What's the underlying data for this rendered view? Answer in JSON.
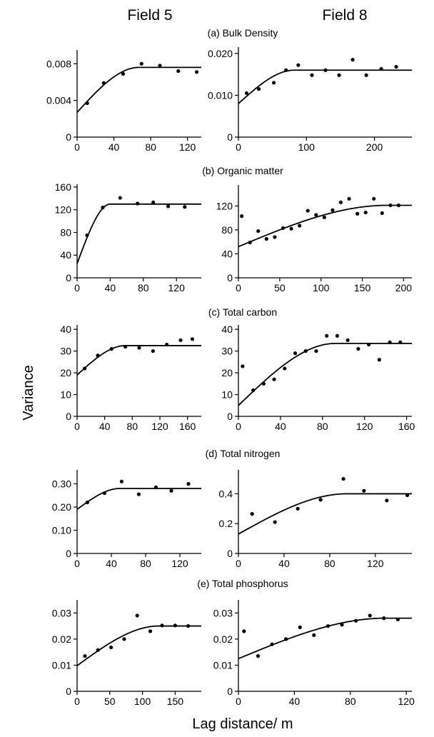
{
  "figure": {
    "columns": [
      "Field 5",
      "Field 8"
    ],
    "ylabel": "Variance",
    "xlabel": "Lag distance/ m"
  },
  "chart_data": [
    {
      "type": "scatter",
      "row": "(a) Bulk Density",
      "column": "Field 5",
      "xlim": [
        0,
        135
      ],
      "ylim": [
        0,
        0.0095
      ],
      "xticks": [
        0,
        40,
        80,
        120
      ],
      "xtick_labels": [
        "0",
        "40",
        "80",
        "120"
      ],
      "yticks": [
        0,
        0.004,
        0.008
      ],
      "ytick_labels": [
        "0",
        "0.004",
        "0.008"
      ],
      "points": [
        [
          11,
          0.0037
        ],
        [
          29,
          0.0059
        ],
        [
          50,
          0.0069
        ],
        [
          70,
          0.008
        ],
        [
          90,
          0.0078
        ],
        [
          110,
          0.0072
        ],
        [
          130,
          0.0071
        ]
      ],
      "model": {
        "type": "spherical",
        "nugget": 0.0027,
        "sill": 0.0076,
        "range": 67
      }
    },
    {
      "type": "scatter",
      "row": "(a) Bulk Density",
      "column": "Field 8",
      "xlim": [
        0,
        255
      ],
      "ylim": [
        0,
        0.0215
      ],
      "xticks": [
        0,
        100,
        200
      ],
      "xtick_labels": [
        "0",
        "100",
        "200"
      ],
      "yticks": [
        0,
        0.01,
        0.02
      ],
      "ytick_labels": [
        "0",
        "0.010",
        "0.020"
      ],
      "points": [
        [
          12,
          0.0105
        ],
        [
          30,
          0.0115
        ],
        [
          52,
          0.013
        ],
        [
          70,
          0.016
        ],
        [
          88,
          0.0172
        ],
        [
          108,
          0.0148
        ],
        [
          128,
          0.016
        ],
        [
          148,
          0.0148
        ],
        [
          168,
          0.0185
        ],
        [
          188,
          0.0148
        ],
        [
          210,
          0.0163
        ],
        [
          232,
          0.0168
        ]
      ],
      "model": {
        "type": "spherical",
        "nugget": 0.008,
        "sill": 0.016,
        "range": 82
      }
    },
    {
      "type": "scatter",
      "row": "(b) Organic matter",
      "column": "Field 5",
      "xlim": [
        0,
        150
      ],
      "ylim": [
        0,
        165
      ],
      "xticks": [
        0,
        40,
        80,
        120
      ],
      "xtick_labels": [
        "0",
        "40",
        "80",
        "120"
      ],
      "yticks": [
        0,
        40,
        80,
        120,
        160
      ],
      "ytick_labels": [
        "0",
        "40",
        "80",
        "120",
        "160"
      ],
      "points": [
        [
          12,
          75
        ],
        [
          31,
          124
        ],
        [
          52,
          141
        ],
        [
          73,
          131
        ],
        [
          92,
          133
        ],
        [
          110,
          126
        ],
        [
          130,
          125
        ]
      ],
      "model": {
        "type": "spherical",
        "nugget": 25,
        "sill": 130,
        "range": 40
      }
    },
    {
      "type": "scatter",
      "row": "(b) Organic matter",
      "column": "Field 8",
      "xlim": [
        0,
        210
      ],
      "ylim": [
        0,
        155
      ],
      "xticks": [
        0,
        50,
        100,
        150,
        200
      ],
      "xtick_labels": [
        "0",
        "50",
        "100",
        "150",
        "200"
      ],
      "yticks": [
        0,
        40,
        80,
        120
      ],
      "ytick_labels": [
        "0",
        "40",
        "80",
        "120"
      ],
      "points": [
        [
          4,
          103
        ],
        [
          14,
          59
        ],
        [
          24,
          78
        ],
        [
          34,
          65
        ],
        [
          44,
          68
        ],
        [
          54,
          83
        ],
        [
          64,
          82
        ],
        [
          74,
          87
        ],
        [
          84,
          112
        ],
        [
          94,
          105
        ],
        [
          104,
          101
        ],
        [
          114,
          113
        ],
        [
          124,
          126
        ],
        [
          134,
          132
        ],
        [
          144,
          107
        ],
        [
          154,
          109
        ],
        [
          164,
          132
        ],
        [
          174,
          108
        ],
        [
          184,
          121
        ],
        [
          194,
          121
        ]
      ],
      "model": {
        "type": "spherical",
        "nugget": 52,
        "sill": 121,
        "range": 180
      }
    },
    {
      "type": "scatter",
      "row": "(c) Total carbon",
      "column": "Field 5",
      "xlim": [
        0,
        180
      ],
      "ylim": [
        0,
        42
      ],
      "xticks": [
        0,
        40,
        80,
        120,
        160
      ],
      "xtick_labels": [
        "0",
        "40",
        "80",
        "120",
        "160"
      ],
      "yticks": [
        0,
        10,
        20,
        30,
        40
      ],
      "ytick_labels": [
        "0",
        "10",
        "20",
        "30",
        "40"
      ],
      "points": [
        [
          11,
          22
        ],
        [
          30,
          28
        ],
        [
          50,
          31
        ],
        [
          70,
          32
        ],
        [
          90,
          31.5
        ],
        [
          110,
          30
        ],
        [
          130,
          33
        ],
        [
          150,
          35
        ],
        [
          167,
          35.5
        ]
      ],
      "model": {
        "type": "spherical",
        "nugget": 19,
        "sill": 32.5,
        "range": 70
      }
    },
    {
      "type": "scatter",
      "row": "(c) Total carbon",
      "column": "Field 8",
      "xlim": [
        0,
        165
      ],
      "ylim": [
        0,
        42
      ],
      "xticks": [
        0,
        40,
        80,
        120,
        160
      ],
      "xtick_labels": [
        "0",
        "40",
        "80",
        "120",
        "160"
      ],
      "yticks": [
        0,
        10,
        20,
        30,
        40
      ],
      "ytick_labels": [
        "0",
        "10",
        "20",
        "30",
        "40"
      ],
      "points": [
        [
          4,
          23
        ],
        [
          14,
          12
        ],
        [
          24,
          15
        ],
        [
          34,
          17
        ],
        [
          44,
          22
        ],
        [
          54,
          29
        ],
        [
          64,
          30
        ],
        [
          74,
          30
        ],
        [
          84,
          37
        ],
        [
          94,
          37
        ],
        [
          104,
          35
        ],
        [
          114,
          31
        ],
        [
          124,
          33
        ],
        [
          134,
          26
        ],
        [
          144,
          34
        ],
        [
          154,
          34
        ]
      ],
      "model": {
        "type": "spherical",
        "nugget": 5,
        "sill": 33.5,
        "range": 92
      }
    },
    {
      "type": "scatter",
      "row": "(d) Total nitrogen",
      "column": "Field 5",
      "xlim": [
        0,
        145
      ],
      "ylim": [
        0,
        0.36
      ],
      "xticks": [
        0,
        40,
        80,
        120
      ],
      "xtick_labels": [
        "0",
        "40",
        "80",
        "120"
      ],
      "yticks": [
        0,
        0.1,
        0.2,
        0.3
      ],
      "ytick_labels": [
        "0",
        "0.10",
        "0.20",
        "0.30"
      ],
      "points": [
        [
          12,
          0.22
        ],
        [
          32,
          0.26
        ],
        [
          52,
          0.31
        ],
        [
          72,
          0.255
        ],
        [
          92,
          0.285
        ],
        [
          110,
          0.27
        ],
        [
          130,
          0.3
        ]
      ],
      "model": {
        "type": "spherical",
        "nugget": 0.19,
        "sill": 0.28,
        "range": 50
      }
    },
    {
      "type": "scatter",
      "row": "(d) Total nitrogen",
      "column": "Field 8",
      "xlim": [
        0,
        152
      ],
      "ylim": [
        0,
        0.56
      ],
      "xticks": [
        0,
        40,
        80,
        120
      ],
      "xtick_labels": [
        "0",
        "40",
        "80",
        "120"
      ],
      "yticks": [
        0,
        0.2,
        0.4
      ],
      "ytick_labels": [
        "0",
        "0.2",
        "0.4"
      ],
      "points": [
        [
          12,
          0.265
        ],
        [
          32,
          0.21
        ],
        [
          52,
          0.3
        ],
        [
          72,
          0.36
        ],
        [
          92,
          0.5
        ],
        [
          110,
          0.42
        ],
        [
          130,
          0.355
        ],
        [
          148,
          0.39
        ]
      ],
      "model": {
        "type": "spherical",
        "nugget": 0.13,
        "sill": 0.4,
        "range": 95
      }
    },
    {
      "type": "scatter",
      "row": "(e) Total phosphorus",
      "column": "Field 5",
      "xlim": [
        0,
        190
      ],
      "ylim": [
        0,
        0.035
      ],
      "xticks": [
        0,
        50,
        100,
        150
      ],
      "xtick_labels": [
        "0",
        "50",
        "100",
        "150"
      ],
      "yticks": [
        0,
        0.01,
        0.02,
        0.03
      ],
      "ytick_labels": [
        "0",
        "0.01",
        "0.02",
        "0.03"
      ],
      "points": [
        [
          12,
          0.0135
        ],
        [
          32,
          0.0158
        ],
        [
          52,
          0.0168
        ],
        [
          72,
          0.02
        ],
        [
          92,
          0.029
        ],
        [
          112,
          0.023
        ],
        [
          130,
          0.0252
        ],
        [
          150,
          0.0252
        ],
        [
          170,
          0.025
        ]
      ],
      "model": {
        "type": "spherical",
        "nugget": 0.0098,
        "sill": 0.025,
        "range": 125
      }
    },
    {
      "type": "scatter",
      "row": "(e) Total phosphorus",
      "column": "Field 8",
      "xlim": [
        0,
        124
      ],
      "ylim": [
        0,
        0.035
      ],
      "xticks": [
        0,
        40,
        80,
        120
      ],
      "xtick_labels": [
        "0",
        "40",
        "80",
        "120"
      ],
      "yticks": [
        0,
        0.01,
        0.02,
        0.03
      ],
      "ytick_labels": [
        "0",
        "0.01",
        "0.02",
        "0.03"
      ],
      "points": [
        [
          4,
          0.023
        ],
        [
          14,
          0.0135
        ],
        [
          24,
          0.018
        ],
        [
          34,
          0.02
        ],
        [
          44,
          0.0245
        ],
        [
          54,
          0.0215
        ],
        [
          64,
          0.025
        ],
        [
          74,
          0.0255
        ],
        [
          84,
          0.027
        ],
        [
          94,
          0.029
        ],
        [
          104,
          0.028
        ],
        [
          114,
          0.0275
        ]
      ],
      "model": {
        "type": "spherical",
        "nugget": 0.0125,
        "sill": 0.028,
        "range": 105
      }
    }
  ]
}
